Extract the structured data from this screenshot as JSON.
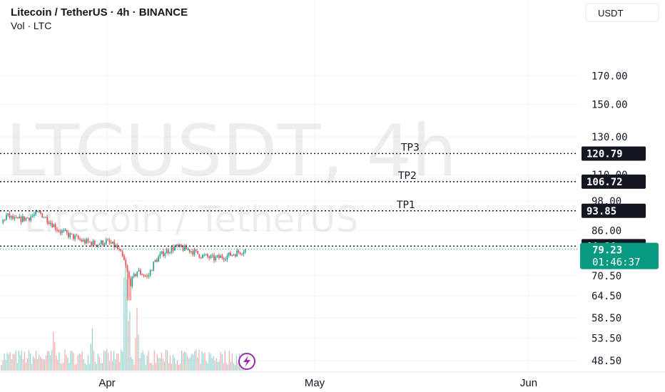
{
  "header": {
    "title": "Litecoin / TetherUS · 4h · BINANCE",
    "subtitle": "Vol · LTC"
  },
  "currency_button": "USDT",
  "watermark": {
    "symbol": "LTCUSDT, 4h",
    "name": "Litecoin / TetherUS"
  },
  "colors": {
    "up": "#26a69a",
    "down": "#ef5350",
    "vol_up": "#92d2cc",
    "vol_down": "#f7a9a7",
    "badge_dark": "#131722",
    "badge_current": "#089981",
    "grid": "#f0f3fa",
    "text": "#131722"
  },
  "chart_data": {
    "type": "candlestick",
    "symbol": "LTCUSDT",
    "interval": "4h",
    "exchange": "BINANCE",
    "y_scale": "log",
    "ylim": [
      44.5,
      200
    ],
    "y_ticks": [
      "170.00",
      "150.00",
      "130.00",
      "110.00",
      "98.00",
      "86.00",
      "70.50",
      "64.50",
      "58.50",
      "53.50",
      "48.50"
    ],
    "x_ticks": [
      "Apr",
      "May",
      "Jun"
    ],
    "price_path": [
      [
        0,
        89
      ],
      [
        0.03,
        92
      ],
      [
        0.08,
        90
      ],
      [
        0.15,
        91
      ],
      [
        0.22,
        93
      ],
      [
        0.27,
        90
      ],
      [
        0.33,
        86
      ],
      [
        0.4,
        84
      ],
      [
        0.47,
        82
      ],
      [
        0.55,
        81
      ],
      [
        0.6,
        82
      ],
      [
        0.66,
        80
      ],
      [
        0.7,
        76
      ],
      [
        0.74,
        68
      ],
      [
        0.78,
        72
      ],
      [
        0.84,
        70
      ],
      [
        0.88,
        75
      ],
      [
        0.93,
        78
      ],
      [
        1.0,
        80
      ],
      [
        1.08,
        79
      ],
      [
        1.15,
        77
      ],
      [
        1.22,
        76
      ],
      [
        1.3,
        77
      ],
      [
        1.35,
        78
      ],
      [
        1.4,
        79
      ]
    ],
    "price_low": 63.2,
    "price_high": 94.5,
    "volume_peaks": [
      [
        0.71,
        28
      ],
      [
        0.78,
        22
      ],
      [
        0.52,
        14
      ],
      [
        0.3,
        9
      ]
    ],
    "levels": [
      {
        "label": "TP3",
        "value": "120.79"
      },
      {
        "label": "TP2",
        "value": "106.72"
      },
      {
        "label": "TP1",
        "value": "93.85"
      },
      {
        "label": "",
        "value": "80.31"
      }
    ],
    "current_price": "79.23",
    "countdown": "01:46:37",
    "grid": true
  }
}
